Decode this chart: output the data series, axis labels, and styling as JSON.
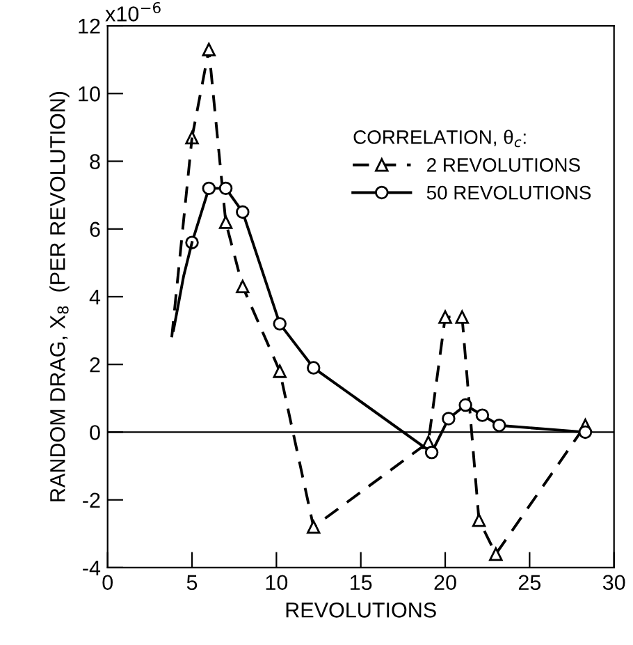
{
  "chart_data": {
    "type": "line",
    "xlabel": "REVOLUTIONS",
    "ylabel": "RANDOM DRAG, X$_{8}$  (PER REVOLUTION)",
    "legend_title": "CORRELATION, θ$_{c}$:",
    "series": [
      {
        "name": "2 REVOLUTIONS",
        "color": "#000000",
        "marker": "triangle",
        "line_style": "dashed",
        "x": [
          5,
          6,
          7,
          8,
          10.2,
          12.2,
          19,
          20,
          21,
          22,
          23,
          28.3
        ],
        "values": [
          8.7,
          11.3,
          6.2,
          4.3,
          1.8,
          -2.8,
          -0.3,
          3.4,
          3.4,
          -2.6,
          -3.6,
          0.2
        ]
      },
      {
        "name": "50 REVOLUTIONS",
        "color": "#000000",
        "marker": "circle",
        "line_style": "solid",
        "x": [
          5,
          6,
          7,
          8,
          10.2,
          12.2,
          19.2,
          20.2,
          21.2,
          22.2,
          23.2,
          28.3
        ],
        "values": [
          5.6,
          7.2,
          7.2,
          6.5,
          3.2,
          1.9,
          -0.6,
          0.4,
          0.8,
          0.5,
          0.2,
          0
        ]
      },
      {
        "color": "#000000",
        "marker": "none",
        "line_style": "dashed",
        "x": [
          3.8,
          5
        ],
        "values": [
          2.8,
          8.7
        ]
      },
      {
        "color": "#000000",
        "marker": "none",
        "line_style": "solid",
        "x": [
          3.9,
          4.5,
          5
        ],
        "values": [
          3.0,
          4.6,
          5.6
        ]
      }
    ],
    "xlim": [
      0,
      30
    ],
    "xticks": [
      0,
      5,
      10,
      15,
      20,
      25,
      30
    ],
    "ylim": [
      -4,
      12
    ],
    "yticks": [
      -4,
      -2,
      0,
      2,
      4,
      6,
      8,
      10,
      12
    ],
    "annotations": [
      "x10$^{−6}$"
    ],
    "ref_lines": [
      {
        "axis": "y",
        "value": 0,
        "color": "#000000"
      }
    ],
    "legend": "top right",
    "grid": false
  }
}
